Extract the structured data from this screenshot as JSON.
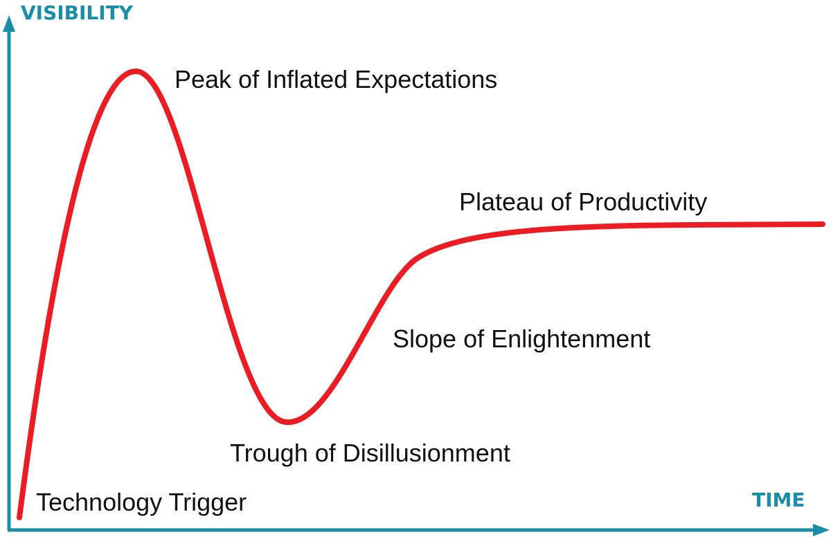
{
  "axes": {
    "y_label": "VISIBILITY",
    "x_label": "TIME"
  },
  "phases": [
    {
      "label": "Technology Trigger"
    },
    {
      "label": "Peak of Inflated Expectations"
    },
    {
      "label": "Trough of Disillusionment"
    },
    {
      "label": "Slope of Enlightenment"
    },
    {
      "label": "Plateau of Productivity"
    }
  ]
}
